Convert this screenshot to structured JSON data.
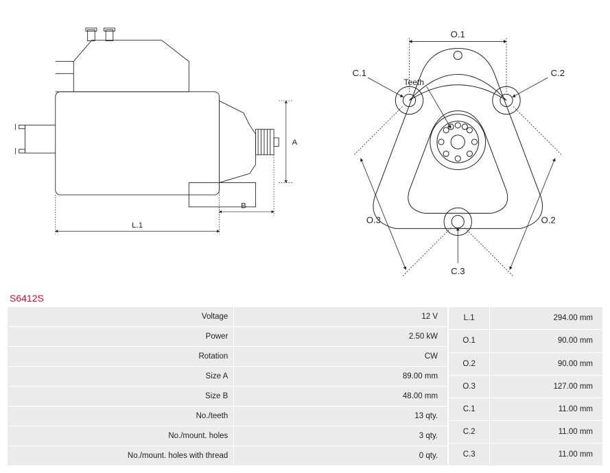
{
  "part_number": "S6412S",
  "diagrams": {
    "side": {
      "dim_L1": "L.1",
      "dim_A": "A",
      "dim_B": "B",
      "stroke": "#222222",
      "bg": "#ffffff"
    },
    "front": {
      "dim_O1": "O.1",
      "dim_O2": "O.2",
      "dim_O3": "O.3",
      "dim_C1": "C.1",
      "dim_C2": "C.2",
      "dim_C3": "C.3",
      "teeth_label": "Teeth",
      "stroke": "#222222"
    }
  },
  "specs_left": [
    {
      "label": "Voltage",
      "value": "12 V"
    },
    {
      "label": "Power",
      "value": "2.50 kW"
    },
    {
      "label": "Rotation",
      "value": "CW"
    },
    {
      "label": "Size A",
      "value": "89.00 mm"
    },
    {
      "label": "Size B",
      "value": "48.00 mm"
    },
    {
      "label": "No./teeth",
      "value": "13 qty."
    },
    {
      "label": "No./mount. holes",
      "value": "3 qty."
    },
    {
      "label": "No./mount. holes with thread",
      "value": "0 qty."
    }
  ],
  "specs_right": [
    {
      "label": "L.1",
      "value": "294.00 mm"
    },
    {
      "label": "O.1",
      "value": "90.00 mm"
    },
    {
      "label": "O.2",
      "value": "90.00 mm"
    },
    {
      "label": "O.3",
      "value": "127.00 mm"
    },
    {
      "label": "C.1",
      "value": "11.00 mm"
    },
    {
      "label": "C.2",
      "value": "11.00 mm"
    },
    {
      "label": "C.3",
      "value": "11.00 mm"
    }
  ]
}
